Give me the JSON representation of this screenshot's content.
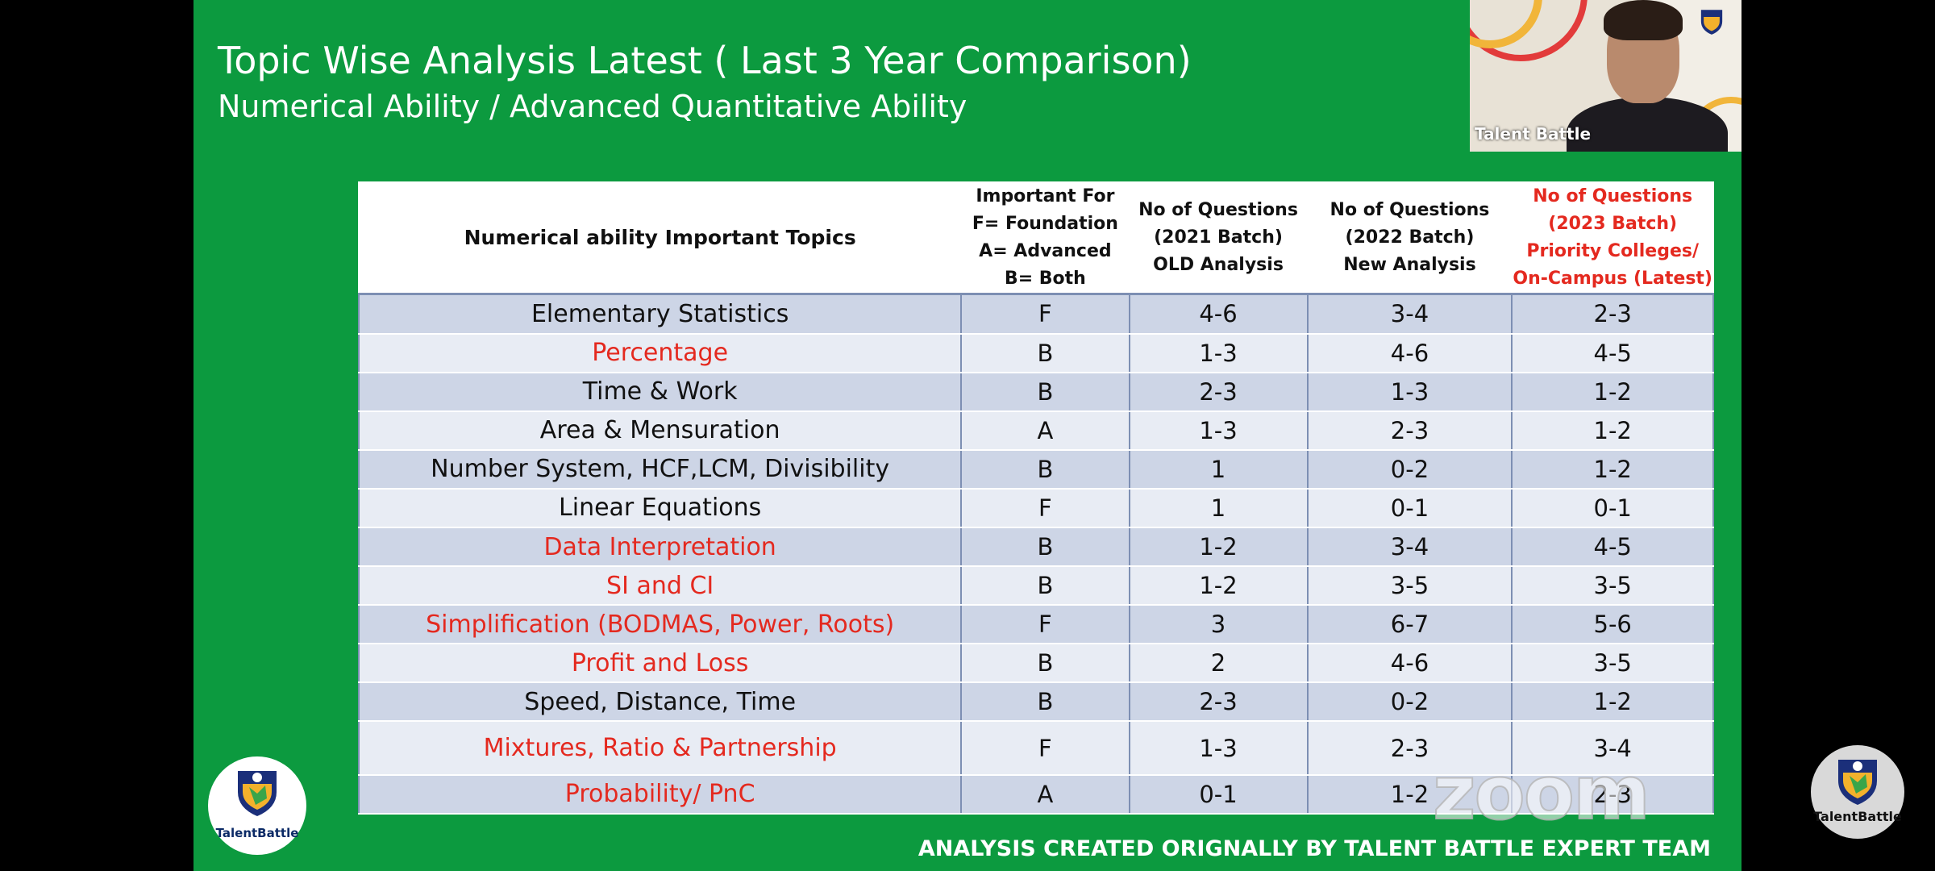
{
  "slide": {
    "title": "Topic Wise Analysis Latest ( Last 3 Year Comparison)",
    "subtitle": "Numerical Ability / Advanced Quantitative Ability",
    "footer": "ANALYSIS CREATED ORIGNALLY BY TALENT BATTLE EXPERT TEAM"
  },
  "table": {
    "headers": [
      "Numerical ability Important Topics",
      "Important For\nF= Foundation\nA= Advanced\nB= Both",
      "No of Questions\n(2021 Batch)\nOLD Analysis",
      "No of Questions\n(2022 Batch)\nNew Analysis",
      "No of Questions\n(2023 Batch)\nPriority Colleges/\nOn-Campus (Latest)"
    ],
    "rows": [
      {
        "topic": "Elementary Statistics",
        "imp": "F",
        "q2021": "4-6",
        "q2022": "3-4",
        "q2023": "2-3",
        "highlight": false
      },
      {
        "topic": "Percentage",
        "imp": "B",
        "q2021": "1-3",
        "q2022": "4-6",
        "q2023": "4-5",
        "highlight": true
      },
      {
        "topic": "Time & Work",
        "imp": "B",
        "q2021": "2-3",
        "q2022": "1-3",
        "q2023": "1-2",
        "highlight": false
      },
      {
        "topic": "Area & Mensuration",
        "imp": "A",
        "q2021": "1-3",
        "q2022": "2-3",
        "q2023": "1-2",
        "highlight": false
      },
      {
        "topic": "Number System, HCF,LCM, Divisibility",
        "imp": "B",
        "q2021": "1",
        "q2022": "0-2",
        "q2023": "1-2",
        "highlight": false
      },
      {
        "topic": "Linear Equations",
        "imp": "F",
        "q2021": "1",
        "q2022": "0-1",
        "q2023": "0-1",
        "highlight": false
      },
      {
        "topic": "Data Interpretation",
        "imp": "B",
        "q2021": "1-2",
        "q2022": "3-4",
        "q2023": "4-5",
        "highlight": true
      },
      {
        "topic": "SI and CI",
        "imp": "B",
        "q2021": "1-2",
        "q2022": "3-5",
        "q2023": "3-5",
        "highlight": true
      },
      {
        "topic": "Simplification (BODMAS, Power, Roots)",
        "imp": "F",
        "q2021": "3",
        "q2022": "6-7",
        "q2023": "5-6",
        "highlight": true
      },
      {
        "topic": "Profit and Loss",
        "imp": "B",
        "q2021": "2",
        "q2022": "4-6",
        "q2023": "3-5",
        "highlight": true
      },
      {
        "topic": "Speed, Distance, Time",
        "imp": "B",
        "q2021": "2-3",
        "q2022": "0-2",
        "q2023": "1-2",
        "highlight": false
      },
      {
        "topic": "Mixtures, Ratio & Partnership",
        "imp": "F",
        "q2021": "1-3",
        "q2022": "2-3",
        "q2023": "3-4",
        "highlight": true
      },
      {
        "topic": "Probability/ PnC",
        "imp": "A",
        "q2021": "0-1",
        "q2022": "1-2",
        "q2023": "2-3",
        "highlight": true
      }
    ]
  },
  "video_tile": {
    "name": "Talent Battle"
  },
  "logos": {
    "left": "TalentBattle",
    "right": "TalentBattle"
  },
  "watermark": "zoom",
  "colors": {
    "slide_bg": "#0c9a3f",
    "highlight_text": "#e4291f",
    "row_dark": "#cdd5e6",
    "row_light": "#e8ecf4"
  }
}
